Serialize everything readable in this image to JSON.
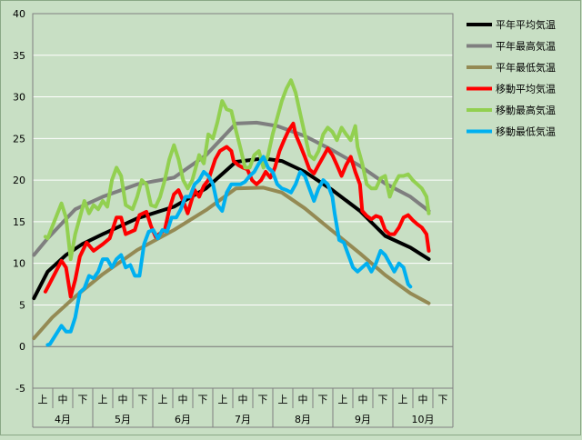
{
  "chart_data": {
    "type": "line",
    "ylim": [
      -5,
      40
    ],
    "ytick_step": 5,
    "x_periods": [
      "上",
      "中",
      "下",
      "上",
      "中",
      "下",
      "上",
      "中",
      "下",
      "上",
      "中",
      "下",
      "上",
      "中",
      "下",
      "上",
      "中",
      "下",
      "上",
      "中",
      "下"
    ],
    "x_months": [
      "4月",
      "5月",
      "6月",
      "7月",
      "8月",
      "9月",
      "10月"
    ],
    "grid": true,
    "legend_position": "right",
    "colors": {
      "background": "#c8dfc4",
      "平年平均気温": "#000000",
      "平年最高気温": "#7f7f7f",
      "平年最低気温": "#948a54",
      "移動平均気温": "#ff0000",
      "移動最高気温": "#92d050",
      "移動最低気温": "#00b0f0"
    },
    "series": [
      {
        "name": "平年平均気温",
        "values": [
          [
            0,
            5.8
          ],
          [
            6,
            9.0
          ],
          [
            14,
            11.0
          ],
          [
            21,
            12.3
          ],
          [
            30,
            13.5
          ],
          [
            45,
            15.4
          ],
          [
            61,
            16.8
          ],
          [
            75,
            19.0
          ],
          [
            88,
            22.2
          ],
          [
            100,
            22.6
          ],
          [
            108,
            22.3
          ],
          [
            118,
            21.0
          ],
          [
            130,
            18.8
          ],
          [
            142,
            16.3
          ],
          [
            153,
            13.3
          ],
          [
            164,
            11.9
          ],
          [
            172,
            10.5
          ]
        ]
      },
      {
        "name": "平年最高気温",
        "values": [
          [
            0,
            11.0
          ],
          [
            6,
            13.0
          ],
          [
            18,
            16.5
          ],
          [
            30,
            18.0
          ],
          [
            45,
            19.5
          ],
          [
            61,
            20.3
          ],
          [
            75,
            23.0
          ],
          [
            88,
            26.8
          ],
          [
            97,
            26.9
          ],
          [
            106,
            26.5
          ],
          [
            118,
            25.3
          ],
          [
            130,
            23.6
          ],
          [
            142,
            21.7
          ],
          [
            153,
            19.6
          ],
          [
            164,
            18.0
          ],
          [
            172,
            16.3
          ]
        ]
      },
      {
        "name": "平年最低気温",
        "values": [
          [
            0,
            1.0
          ],
          [
            8,
            3.5
          ],
          [
            18,
            6.0
          ],
          [
            30,
            8.7
          ],
          [
            45,
            11.6
          ],
          [
            61,
            14.0
          ],
          [
            75,
            16.4
          ],
          [
            88,
            19.0
          ],
          [
            100,
            19.1
          ],
          [
            108,
            18.5
          ],
          [
            118,
            16.6
          ],
          [
            130,
            13.9
          ],
          [
            142,
            11.2
          ],
          [
            153,
            8.6
          ],
          [
            164,
            6.4
          ],
          [
            172,
            5.2
          ]
        ]
      },
      {
        "name": "移動平均気温",
        "values": [
          [
            5,
            6.6
          ],
          [
            6,
            7.1
          ],
          [
            12,
            10.3
          ],
          [
            14,
            9.5
          ],
          [
            16,
            6.0
          ],
          [
            18,
            8.0
          ],
          [
            20,
            10.8
          ],
          [
            23,
            12.5
          ],
          [
            26,
            11.5
          ],
          [
            30,
            12.3
          ],
          [
            33,
            13.0
          ],
          [
            36,
            15.5
          ],
          [
            38,
            15.5
          ],
          [
            40,
            13.5
          ],
          [
            44,
            14.0
          ],
          [
            46,
            15.8
          ],
          [
            49,
            16.2
          ],
          [
            51,
            14.5
          ],
          [
            53,
            13.2
          ],
          [
            57,
            14.0
          ],
          [
            59,
            16.5
          ],
          [
            61,
            18.3
          ],
          [
            63,
            18.8
          ],
          [
            65,
            17.5
          ],
          [
            67,
            16.0
          ],
          [
            70,
            18.8
          ],
          [
            72,
            18.0
          ],
          [
            74,
            19.3
          ],
          [
            76,
            20.0
          ],
          [
            79,
            22.5
          ],
          [
            81,
            23.5
          ],
          [
            84,
            24.0
          ],
          [
            86,
            23.5
          ],
          [
            87,
            22.3
          ],
          [
            89,
            21.8
          ],
          [
            91,
            21.5
          ],
          [
            93,
            21.3
          ],
          [
            95,
            20.0
          ],
          [
            97,
            19.5
          ],
          [
            99,
            20.0
          ],
          [
            101,
            21.0
          ],
          [
            103,
            20.3
          ],
          [
            105,
            21.5
          ],
          [
            107,
            23.5
          ],
          [
            109,
            24.8
          ],
          [
            111,
            26.0
          ],
          [
            113,
            26.8
          ],
          [
            114,
            25.5
          ],
          [
            116,
            24.2
          ],
          [
            118,
            22.8
          ],
          [
            120,
            21.3
          ],
          [
            122,
            20.8
          ],
          [
            124,
            21.8
          ],
          [
            126,
            22.8
          ],
          [
            128,
            23.8
          ],
          [
            130,
            23.0
          ],
          [
            132,
            21.8
          ],
          [
            134,
            20.5
          ],
          [
            136,
            21.8
          ],
          [
            138,
            22.8
          ],
          [
            140,
            21.0
          ],
          [
            142,
            19.5
          ],
          [
            143,
            16.3
          ],
          [
            145,
            15.7
          ],
          [
            147,
            15.3
          ],
          [
            149,
            15.7
          ],
          [
            151,
            15.5
          ],
          [
            153,
            14.0
          ],
          [
            155,
            13.5
          ],
          [
            157,
            13.5
          ],
          [
            159,
            14.3
          ],
          [
            161,
            15.5
          ],
          [
            163,
            15.8
          ],
          [
            165,
            15.2
          ],
          [
            167,
            14.7
          ],
          [
            169,
            14.3
          ],
          [
            171,
            13.5
          ],
          [
            172,
            11.5
          ]
        ]
      },
      {
        "name": "移動最高気温",
        "values": [
          [
            5,
            13.2
          ],
          [
            6,
            13.0
          ],
          [
            12,
            17.2
          ],
          [
            14,
            15.5
          ],
          [
            16,
            10.5
          ],
          [
            18,
            13.5
          ],
          [
            20,
            15.5
          ],
          [
            22,
            17.5
          ],
          [
            24,
            16.0
          ],
          [
            26,
            17.0
          ],
          [
            28,
            16.5
          ],
          [
            30,
            17.5
          ],
          [
            32,
            16.8
          ],
          [
            34,
            20.0
          ],
          [
            36,
            21.5
          ],
          [
            38,
            20.5
          ],
          [
            40,
            17.0
          ],
          [
            43,
            16.5
          ],
          [
            45,
            18.0
          ],
          [
            47,
            20.0
          ],
          [
            49,
            19.5
          ],
          [
            51,
            17.0
          ],
          [
            53,
            16.8
          ],
          [
            55,
            18.0
          ],
          [
            57,
            20.0
          ],
          [
            59,
            22.5
          ],
          [
            61,
            24.2
          ],
          [
            63,
            22.5
          ],
          [
            65,
            20.0
          ],
          [
            67,
            19.0
          ],
          [
            69,
            20.0
          ],
          [
            72,
            23.0
          ],
          [
            74,
            22.0
          ],
          [
            76,
            25.5
          ],
          [
            78,
            25.0
          ],
          [
            80,
            27.0
          ],
          [
            82,
            29.5
          ],
          [
            84,
            28.5
          ],
          [
            86,
            28.3
          ],
          [
            88,
            26.0
          ],
          [
            90,
            23.8
          ],
          [
            92,
            21.5
          ],
          [
            94,
            21.5
          ],
          [
            96,
            23.0
          ],
          [
            98,
            23.5
          ],
          [
            100,
            21.5
          ],
          [
            102,
            23.0
          ],
          [
            104,
            25.5
          ],
          [
            106,
            27.5
          ],
          [
            108,
            29.5
          ],
          [
            110,
            31.0
          ],
          [
            112,
            32.0
          ],
          [
            114,
            30.5
          ],
          [
            116,
            28.0
          ],
          [
            118,
            25.5
          ],
          [
            120,
            23.0
          ],
          [
            122,
            22.5
          ],
          [
            124,
            23.5
          ],
          [
            126,
            25.5
          ],
          [
            128,
            26.3
          ],
          [
            130,
            25.8
          ],
          [
            132,
            24.8
          ],
          [
            134,
            26.3
          ],
          [
            136,
            25.5
          ],
          [
            138,
            24.8
          ],
          [
            140,
            26.5
          ],
          [
            141,
            24.0
          ],
          [
            143,
            22.0
          ],
          [
            145,
            19.5
          ],
          [
            147,
            19.0
          ],
          [
            149,
            19.0
          ],
          [
            151,
            20.2
          ],
          [
            153,
            20.5
          ],
          [
            155,
            18.0
          ],
          [
            157,
            19.5
          ],
          [
            159,
            20.5
          ],
          [
            161,
            20.5
          ],
          [
            163,
            20.7
          ],
          [
            165,
            20.0
          ],
          [
            167,
            19.5
          ],
          [
            169,
            19.0
          ],
          [
            171,
            18.0
          ],
          [
            172,
            16.0
          ]
        ]
      },
      {
        "name": "移動最低気温",
        "values": [
          [
            6,
            0.2
          ],
          [
            7,
            0.3
          ],
          [
            12,
            2.5
          ],
          [
            14,
            1.8
          ],
          [
            16,
            1.8
          ],
          [
            18,
            3.5
          ],
          [
            20,
            6.5
          ],
          [
            22,
            7.0
          ],
          [
            24,
            8.5
          ],
          [
            26,
            8.2
          ],
          [
            28,
            9.0
          ],
          [
            30,
            10.5
          ],
          [
            32,
            10.5
          ],
          [
            34,
            9.5
          ],
          [
            36,
            10.5
          ],
          [
            38,
            11.0
          ],
          [
            40,
            9.5
          ],
          [
            42,
            9.8
          ],
          [
            44,
            8.5
          ],
          [
            46,
            8.5
          ],
          [
            48,
            12.3
          ],
          [
            50,
            13.8
          ],
          [
            52,
            14.0
          ],
          [
            54,
            13.0
          ],
          [
            56,
            14.0
          ],
          [
            58,
            13.8
          ],
          [
            60,
            15.5
          ],
          [
            62,
            15.5
          ],
          [
            64,
            16.5
          ],
          [
            66,
            18.0
          ],
          [
            68,
            18.0
          ],
          [
            70,
            19.5
          ],
          [
            72,
            20.0
          ],
          [
            74,
            21.0
          ],
          [
            76,
            20.5
          ],
          [
            78,
            19.5
          ],
          [
            80,
            17.0
          ],
          [
            82,
            16.3
          ],
          [
            84,
            18.5
          ],
          [
            86,
            19.5
          ],
          [
            88,
            19.5
          ],
          [
            90,
            19.5
          ],
          [
            92,
            19.8
          ],
          [
            94,
            20.5
          ],
          [
            96,
            21.0
          ],
          [
            98,
            22.0
          ],
          [
            100,
            22.8
          ],
          [
            102,
            21.5
          ],
          [
            104,
            21.0
          ],
          [
            106,
            19.5
          ],
          [
            108,
            19.0
          ],
          [
            110,
            18.8
          ],
          [
            112,
            18.5
          ],
          [
            114,
            19.5
          ],
          [
            116,
            21.0
          ],
          [
            118,
            20.5
          ],
          [
            120,
            19.0
          ],
          [
            122,
            17.5
          ],
          [
            124,
            19.0
          ],
          [
            126,
            20.0
          ],
          [
            128,
            19.5
          ],
          [
            130,
            18.0
          ],
          [
            131,
            16.0
          ],
          [
            133,
            12.8
          ],
          [
            135,
            12.5
          ],
          [
            137,
            11.0
          ],
          [
            139,
            9.5
          ],
          [
            141,
            9.0
          ],
          [
            143,
            9.5
          ],
          [
            145,
            10.0
          ],
          [
            147,
            9.0
          ],
          [
            149,
            10.0
          ],
          [
            151,
            11.5
          ],
          [
            153,
            11.0
          ],
          [
            155,
            10.0
          ],
          [
            157,
            9.0
          ],
          [
            159,
            10.0
          ],
          [
            161,
            9.5
          ],
          [
            163,
            7.5
          ],
          [
            164,
            7.2
          ]
        ]
      }
    ]
  }
}
